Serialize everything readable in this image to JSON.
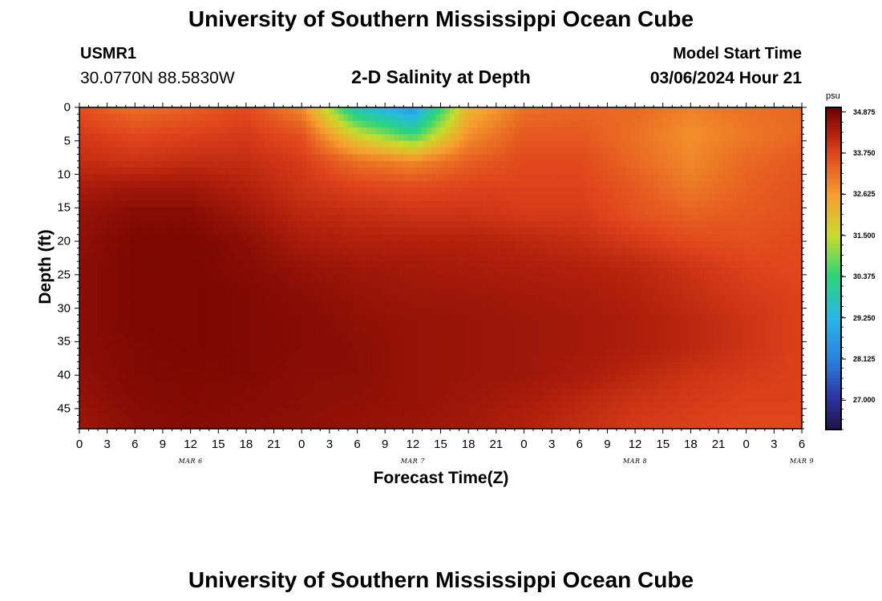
{
  "header": {
    "title": "University of Southern Mississippi Ocean Cube",
    "station_id": "USMR1",
    "station_location": "30.0770N  88.5830W",
    "plot_title": "2-D Salinity at Depth",
    "model_label": "Model Start Time",
    "model_start": "03/06/2024 Hour 21"
  },
  "footer": {
    "title": "University of Southern Mississippi Ocean Cube"
  },
  "chart_data": {
    "type": "heatmap",
    "title": "2-D Salinity at Depth",
    "xlabel": "Forecast Time(Z)",
    "ylabel": "Depth (ft)",
    "x_tick_labels": [
      "0",
      "3",
      "6",
      "9",
      "12",
      "15",
      "18",
      "21",
      "0",
      "3",
      "6",
      "9",
      "12",
      "15",
      "18",
      "21",
      "0",
      "3",
      "6",
      "9",
      "12",
      "15",
      "18",
      "21",
      "0",
      "3",
      "6"
    ],
    "x_day_labels": [
      {
        "label": "MAR 6",
        "at_hour": 12
      },
      {
        "label": "MAR 7",
        "at_hour": 36
      },
      {
        "label": "MAR 8",
        "at_hour": 60
      },
      {
        "label": "MAR 9",
        "at_hour": 78
      }
    ],
    "xlim_hours": [
      0,
      78
    ],
    "y_ticks": [
      0,
      5,
      10,
      15,
      20,
      25,
      30,
      35,
      40,
      45
    ],
    "ylim": [
      0,
      48
    ],
    "y_inverted": true,
    "colorbar": {
      "unit": "psu",
      "range": [
        26.2,
        35.0
      ],
      "labels": [
        "34.875",
        "33.750",
        "32.625",
        "31.500",
        "30.375",
        "29.250",
        "28.125",
        "27.000"
      ],
      "stops": [
        {
          "v": 26.2,
          "c": "#1c1446"
        },
        {
          "v": 27.0,
          "c": "#2d2f9e"
        },
        {
          "v": 28.1,
          "c": "#2a7fe0"
        },
        {
          "v": 29.25,
          "c": "#27b7e8"
        },
        {
          "v": 30.4,
          "c": "#2ad57a"
        },
        {
          "v": 31.5,
          "c": "#c8dc2c"
        },
        {
          "v": 32.6,
          "c": "#f7a02e"
        },
        {
          "v": 33.75,
          "c": "#e0441c"
        },
        {
          "v": 34.3,
          "c": "#b2200c"
        },
        {
          "v": 35.0,
          "c": "#6e0000"
        }
      ]
    },
    "salinity_psu": {
      "times_hours": [
        0,
        6,
        12,
        18,
        24,
        30,
        36,
        42,
        48,
        54,
        60,
        66,
        72,
        78
      ],
      "depths_ft": [
        0,
        4,
        8,
        12,
        16,
        20,
        24,
        28,
        32,
        36,
        40,
        44,
        48
      ],
      "values": [
        [
          33.6,
          33.2,
          33.4,
          33.7,
          32.9,
          29.6,
          28.6,
          32.2,
          33.2,
          33.3,
          33.3,
          33.0,
          33.2,
          33.3
        ],
        [
          33.9,
          33.7,
          33.8,
          33.9,
          33.6,
          31.6,
          30.4,
          32.8,
          33.5,
          33.5,
          33.2,
          32.8,
          33.1,
          33.3
        ],
        [
          34.1,
          34.0,
          34.1,
          34.1,
          33.9,
          33.2,
          32.9,
          33.4,
          33.7,
          33.7,
          33.3,
          32.9,
          33.3,
          33.5
        ],
        [
          34.4,
          34.5,
          34.5,
          34.3,
          34.0,
          33.8,
          33.7,
          33.8,
          33.8,
          33.8,
          33.5,
          33.1,
          33.4,
          33.6
        ],
        [
          34.6,
          34.75,
          34.75,
          34.5,
          34.2,
          34.1,
          34.0,
          34.0,
          33.9,
          33.9,
          33.6,
          33.4,
          33.5,
          33.6
        ],
        [
          34.65,
          34.85,
          34.85,
          34.7,
          34.4,
          34.3,
          34.3,
          34.3,
          34.2,
          34.1,
          33.9,
          33.7,
          33.6,
          33.7
        ],
        [
          34.7,
          34.85,
          34.85,
          34.75,
          34.6,
          34.5,
          34.45,
          34.4,
          34.35,
          34.3,
          34.2,
          34.0,
          33.8,
          33.7
        ],
        [
          34.7,
          34.85,
          34.85,
          34.8,
          34.7,
          34.6,
          34.5,
          34.5,
          34.45,
          34.4,
          34.3,
          34.1,
          33.9,
          33.8
        ],
        [
          34.7,
          34.85,
          34.85,
          34.8,
          34.75,
          34.65,
          34.6,
          34.55,
          34.5,
          34.45,
          34.35,
          34.2,
          34.0,
          33.8
        ],
        [
          34.7,
          34.8,
          34.85,
          34.8,
          34.75,
          34.7,
          34.6,
          34.55,
          34.5,
          34.45,
          34.35,
          34.2,
          34.0,
          33.8
        ],
        [
          34.65,
          34.8,
          34.8,
          34.8,
          34.7,
          34.7,
          34.6,
          34.55,
          34.5,
          34.4,
          34.2,
          34.0,
          33.9,
          33.8
        ],
        [
          34.6,
          34.75,
          34.8,
          34.75,
          34.7,
          34.65,
          34.6,
          34.5,
          34.4,
          34.2,
          34.0,
          33.9,
          33.8,
          33.8
        ],
        [
          34.5,
          34.7,
          34.75,
          34.7,
          34.65,
          34.6,
          34.55,
          34.45,
          34.3,
          34.1,
          33.9,
          33.8,
          33.7,
          33.7
        ]
      ]
    }
  }
}
